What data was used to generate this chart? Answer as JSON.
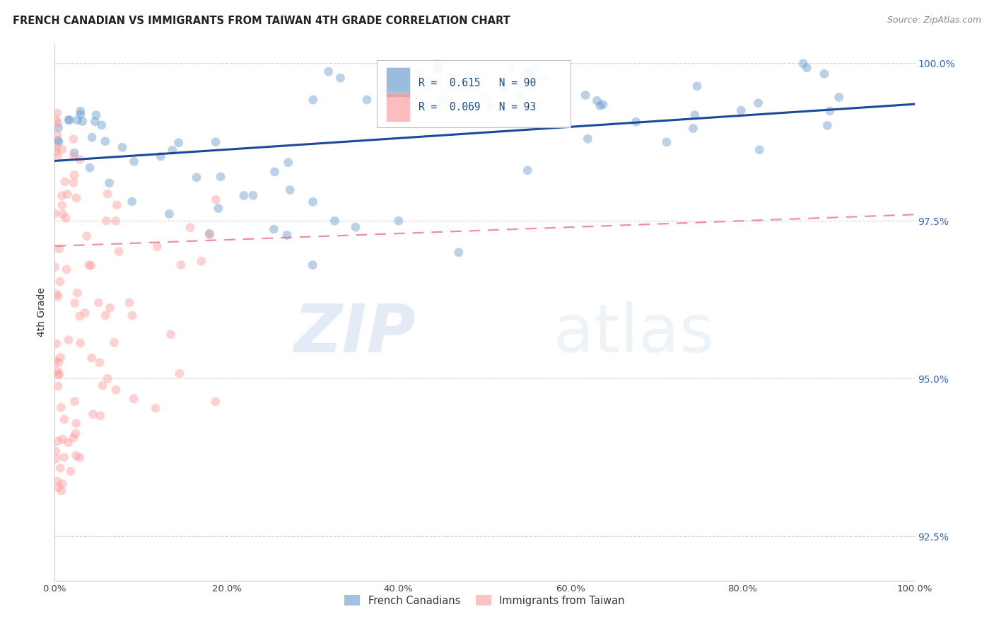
{
  "title": "FRENCH CANADIAN VS IMMIGRANTS FROM TAIWAN 4TH GRADE CORRELATION CHART",
  "source": "Source: ZipAtlas.com",
  "ylabel": "4th Grade",
  "r_blue": 0.615,
  "n_blue": 90,
  "r_pink": 0.069,
  "n_pink": 93,
  "legend_label_blue": "French Canadians",
  "legend_label_pink": "Immigrants from Taiwan",
  "blue_color": "#6699CC",
  "pink_color": "#FF9999",
  "trendline_blue_color": "#1A4A99",
  "trendline_pink_color": "#EE6688",
  "background_color": "#FFFFFF",
  "grid_color": "#CCCCCC",
  "title_color": "#222222",
  "axis_label_color": "#333333",
  "ytick_label_color": "#3366BB",
  "source_color": "#888888",
  "xlim": [
    0.0,
    1.0
  ],
  "ylim": [
    0.918,
    1.003
  ],
  "ytick_vals": [
    0.925,
    0.95,
    0.975,
    1.0
  ],
  "ytick_labels": [
    "92.5%",
    "95.0%",
    "97.5%",
    "100.0%"
  ],
  "xtick_vals": [
    0.0,
    0.2,
    0.4,
    0.6,
    0.8,
    1.0
  ],
  "xtick_labels": [
    "0.0%",
    "20.0%",
    "40.0%",
    "60.0%",
    "80.0%",
    "100.0%"
  ]
}
